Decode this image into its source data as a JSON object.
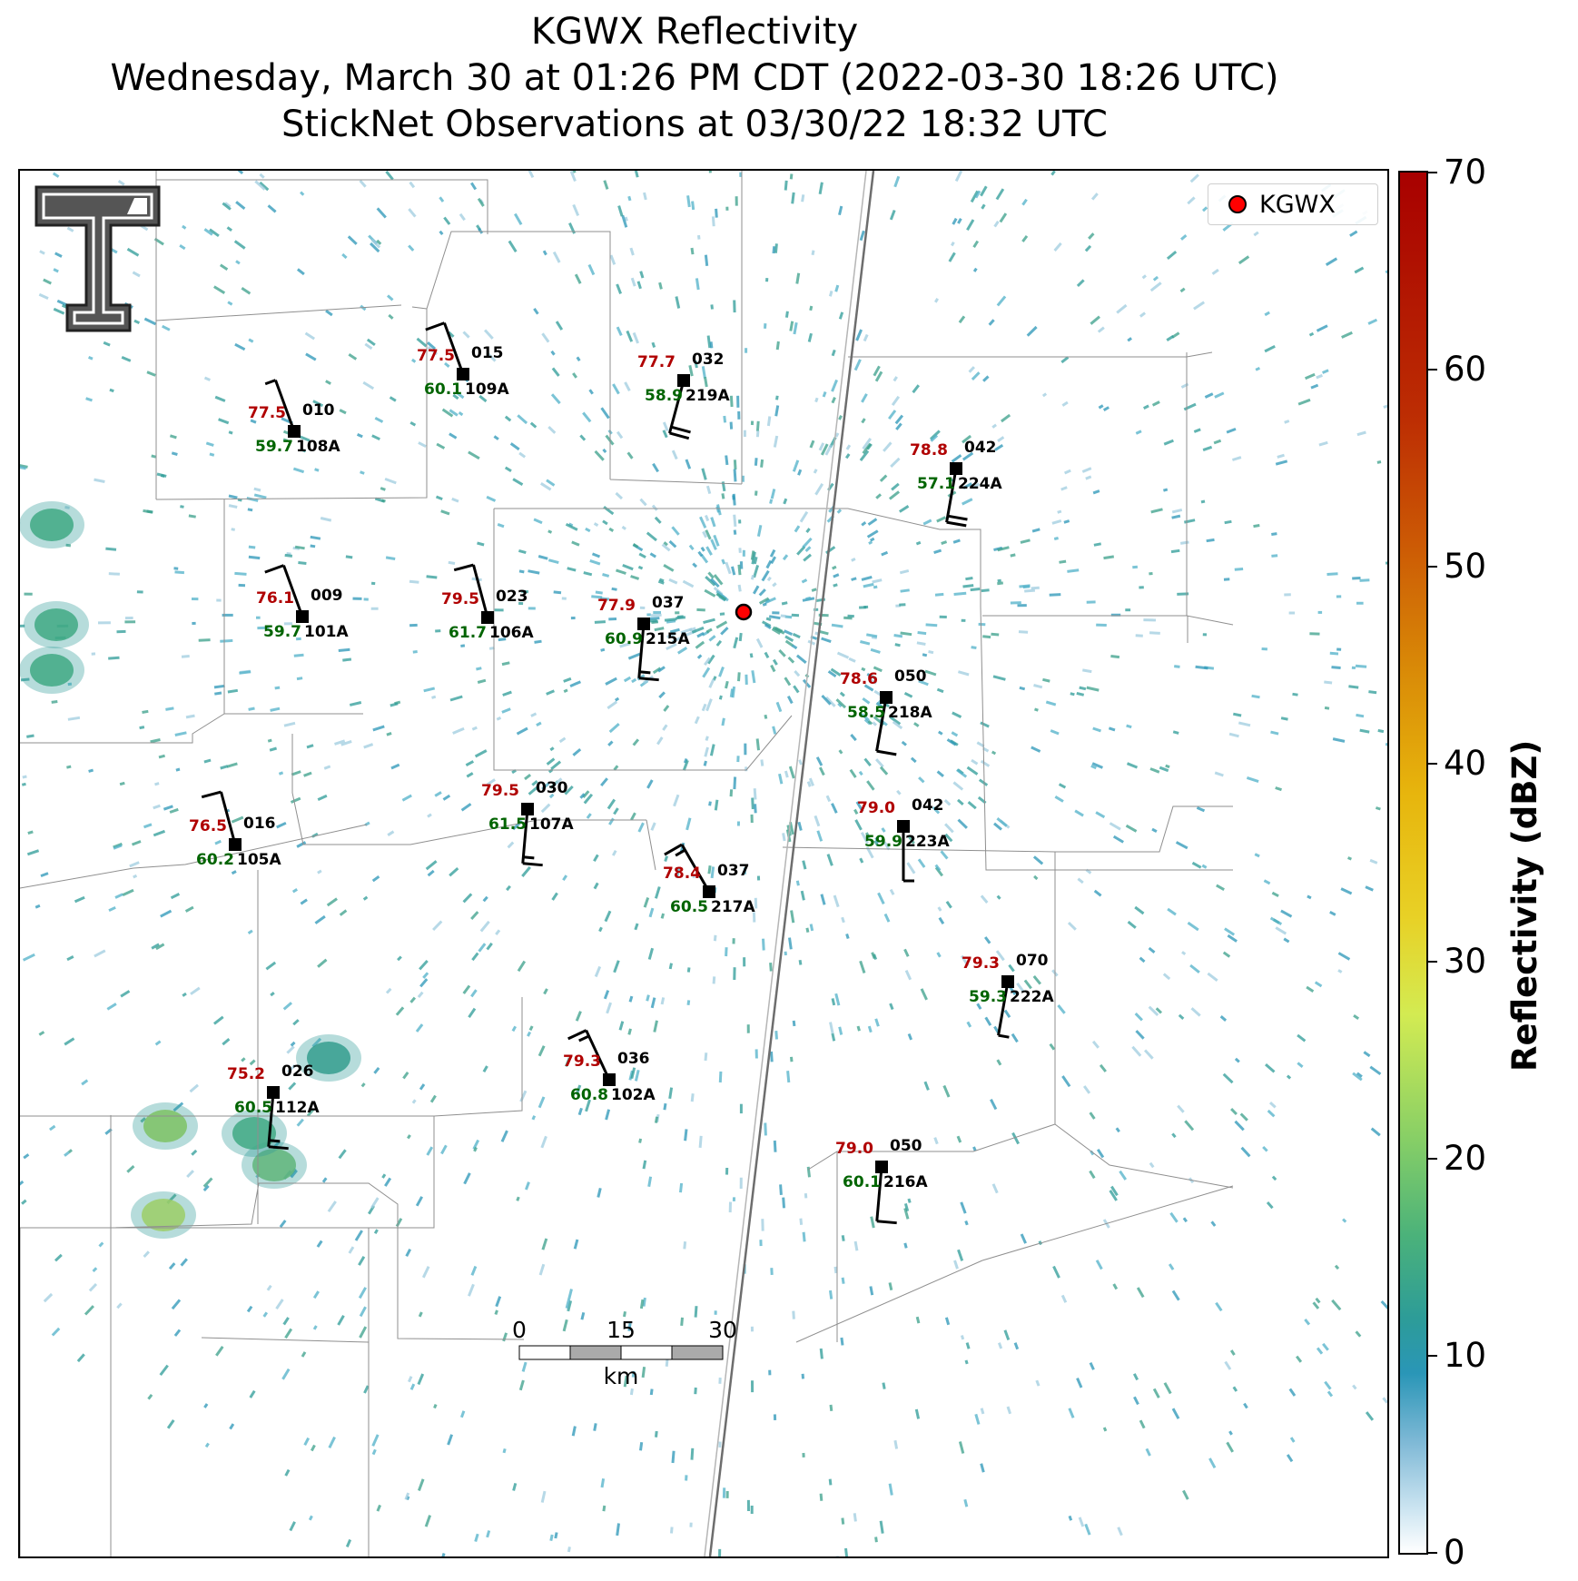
{
  "title": {
    "line1": "KGWX Reflectivity",
    "line2": "Wednesday, March 30 at 01:26 PM CDT (2022-03-30 18:26 UTC)",
    "line3": "StickNet Observations at 03/30/22 18:32 UTC"
  },
  "legend": {
    "label": "KGWX"
  },
  "colorbar": {
    "title": "Reflectivity (dBZ)",
    "ticks": [
      0,
      10,
      20,
      30,
      40,
      50,
      60,
      70
    ]
  },
  "scalebar": {
    "labels": [
      "0",
      "15",
      "30"
    ],
    "unit": "km"
  },
  "stations": [
    {
      "temp": "77.5",
      "dew": "60.1",
      "pres": "015",
      "id": "109A",
      "dir": 340,
      "spd": 10
    },
    {
      "temp": "77.7",
      "dew": "58.9",
      "pres": "032",
      "id": "219A",
      "dir": 195,
      "spd": 20
    },
    {
      "temp": "77.5",
      "dew": "59.7",
      "pres": "010",
      "id": "108A",
      "dir": 340,
      "spd": 5
    },
    {
      "temp": "78.8",
      "dew": "57.1",
      "pres": "042",
      "id": "224A",
      "dir": 190,
      "spd": 20
    },
    {
      "temp": "76.1",
      "dew": "59.7",
      "pres": "009",
      "id": "101A",
      "dir": 340,
      "spd": 10
    },
    {
      "temp": "79.5",
      "dew": "61.7",
      "pres": "023",
      "id": "106A",
      "dir": 345,
      "spd": 10
    },
    {
      "temp": "77.9",
      "dew": "60.9",
      "pres": "037",
      "id": "215A",
      "dir": 185,
      "spd": 15
    },
    {
      "temp": "78.6",
      "dew": "58.5",
      "pres": "050",
      "id": "218A",
      "dir": 190,
      "spd": 10
    },
    {
      "temp": "79.5",
      "dew": "61.5",
      "pres": "030",
      "id": "107A",
      "dir": 185,
      "spd": 15
    },
    {
      "temp": "79.0",
      "dew": "59.9",
      "pres": "042",
      "id": "223A",
      "dir": 180,
      "spd": 5
    },
    {
      "temp": "76.5",
      "dew": "60.2",
      "pres": "016",
      "id": "105A",
      "dir": 345,
      "spd": 10
    },
    {
      "temp": "78.4",
      "dew": "60.5",
      "pres": "037",
      "id": "217A",
      "dir": 330,
      "spd": 15
    },
    {
      "temp": "79.3",
      "dew": "59.3",
      "pres": "070",
      "id": "222A",
      "dir": 190,
      "spd": 5
    },
    {
      "temp": "75.2",
      "dew": "60.5",
      "pres": "026",
      "id": "112A",
      "dir": 185,
      "spd": 15
    },
    {
      "temp": "79.3",
      "dew": "60.8",
      "pres": "036",
      "id": "102A",
      "dir": 335,
      "spd": 15
    },
    {
      "temp": "79.0",
      "dew": "60.1",
      "pres": "050",
      "id": "216A",
      "dir": 185,
      "spd": 10
    }
  ]
}
